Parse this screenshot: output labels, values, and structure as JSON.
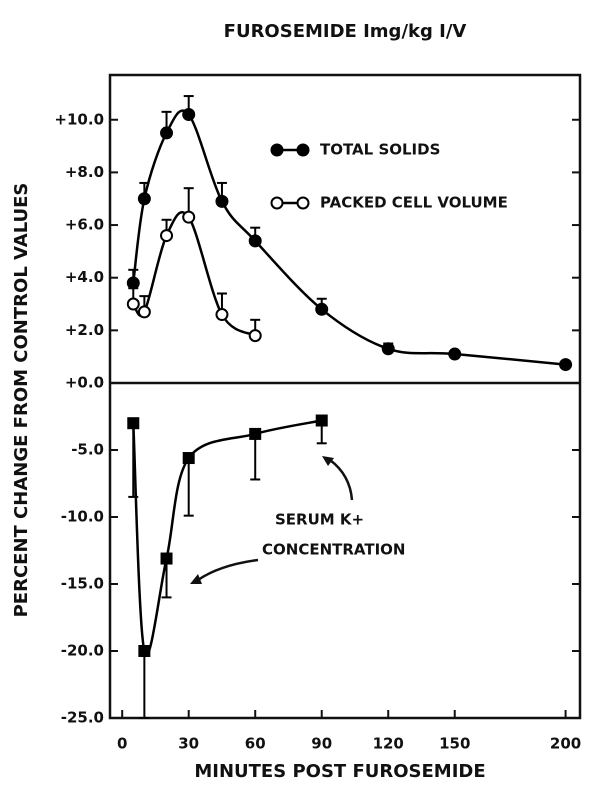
{
  "chart_data": [
    {
      "type": "line",
      "title": "FUROSEMIDE Img/kg I/V",
      "ylabel": "PERCENT CHANGE FROM CONTROL VALUES",
      "xlim": [
        -5.5,
        206.5
      ],
      "ylim": [
        0,
        11.7
      ],
      "yticks": [
        {
          "value": 0,
          "label": "+0.0"
        },
        {
          "value": 2,
          "label": "+2.0"
        },
        {
          "value": 4,
          "label": "+4.0"
        },
        {
          "value": 6,
          "label": "+6.0"
        },
        {
          "value": 8,
          "label": "+8.0"
        },
        {
          "value": 10,
          "label": "+10.0"
        }
      ],
      "series": [
        {
          "name": "TOTAL SOLIDS",
          "color": "#000000",
          "marker": "filled",
          "x": [
            5,
            10,
            20,
            30,
            45,
            60,
            90,
            120,
            150,
            200
          ],
          "values": [
            3.8,
            7.0,
            9.5,
            10.2,
            6.9,
            5.4,
            2.8,
            1.3,
            1.1,
            0.7
          ],
          "errors": [
            0.5,
            0.6,
            0.8,
            0.7,
            0.7,
            0.5,
            0.4,
            0.2,
            null,
            null
          ]
        },
        {
          "name": "PACKED CELL VOLUME",
          "color": "#000000",
          "marker": "open",
          "x": [
            5,
            10,
            20,
            30,
            45,
            60
          ],
          "values": [
            3.0,
            2.7,
            5.6,
            6.3,
            2.6,
            1.8
          ],
          "errors": [
            0.6,
            0.6,
            0.6,
            1.1,
            0.8,
            0.6
          ]
        }
      ]
    },
    {
      "type": "line",
      "xlabel": "MINUTES POST FUROSEMIDE",
      "annotations": [
        "SERUM K+",
        "CONCENTRATION"
      ],
      "xlim": [
        -5.5,
        206.5
      ],
      "xticks": [
        0,
        30,
        60,
        90,
        120,
        150,
        200
      ],
      "ylim": [
        -25,
        0
      ],
      "yticks": [
        {
          "value": -5,
          "label": "-5.0"
        },
        {
          "value": -10,
          "label": "-10.0"
        },
        {
          "value": -15,
          "label": "-15.0"
        },
        {
          "value": -20,
          "label": "-20.0"
        },
        {
          "value": -25,
          "label": "-25.0"
        }
      ],
      "series": [
        {
          "name": "SERUM K+",
          "color": "#000000",
          "marker": "square",
          "x": [
            5,
            10,
            20,
            30,
            60,
            90
          ],
          "values": [
            -3.0,
            -20.0,
            -13.1,
            -5.6,
            -3.8,
            -2.8
          ],
          "errors": [
            5.5,
            5.0,
            2.9,
            4.3,
            3.4,
            1.7
          ]
        }
      ]
    }
  ]
}
